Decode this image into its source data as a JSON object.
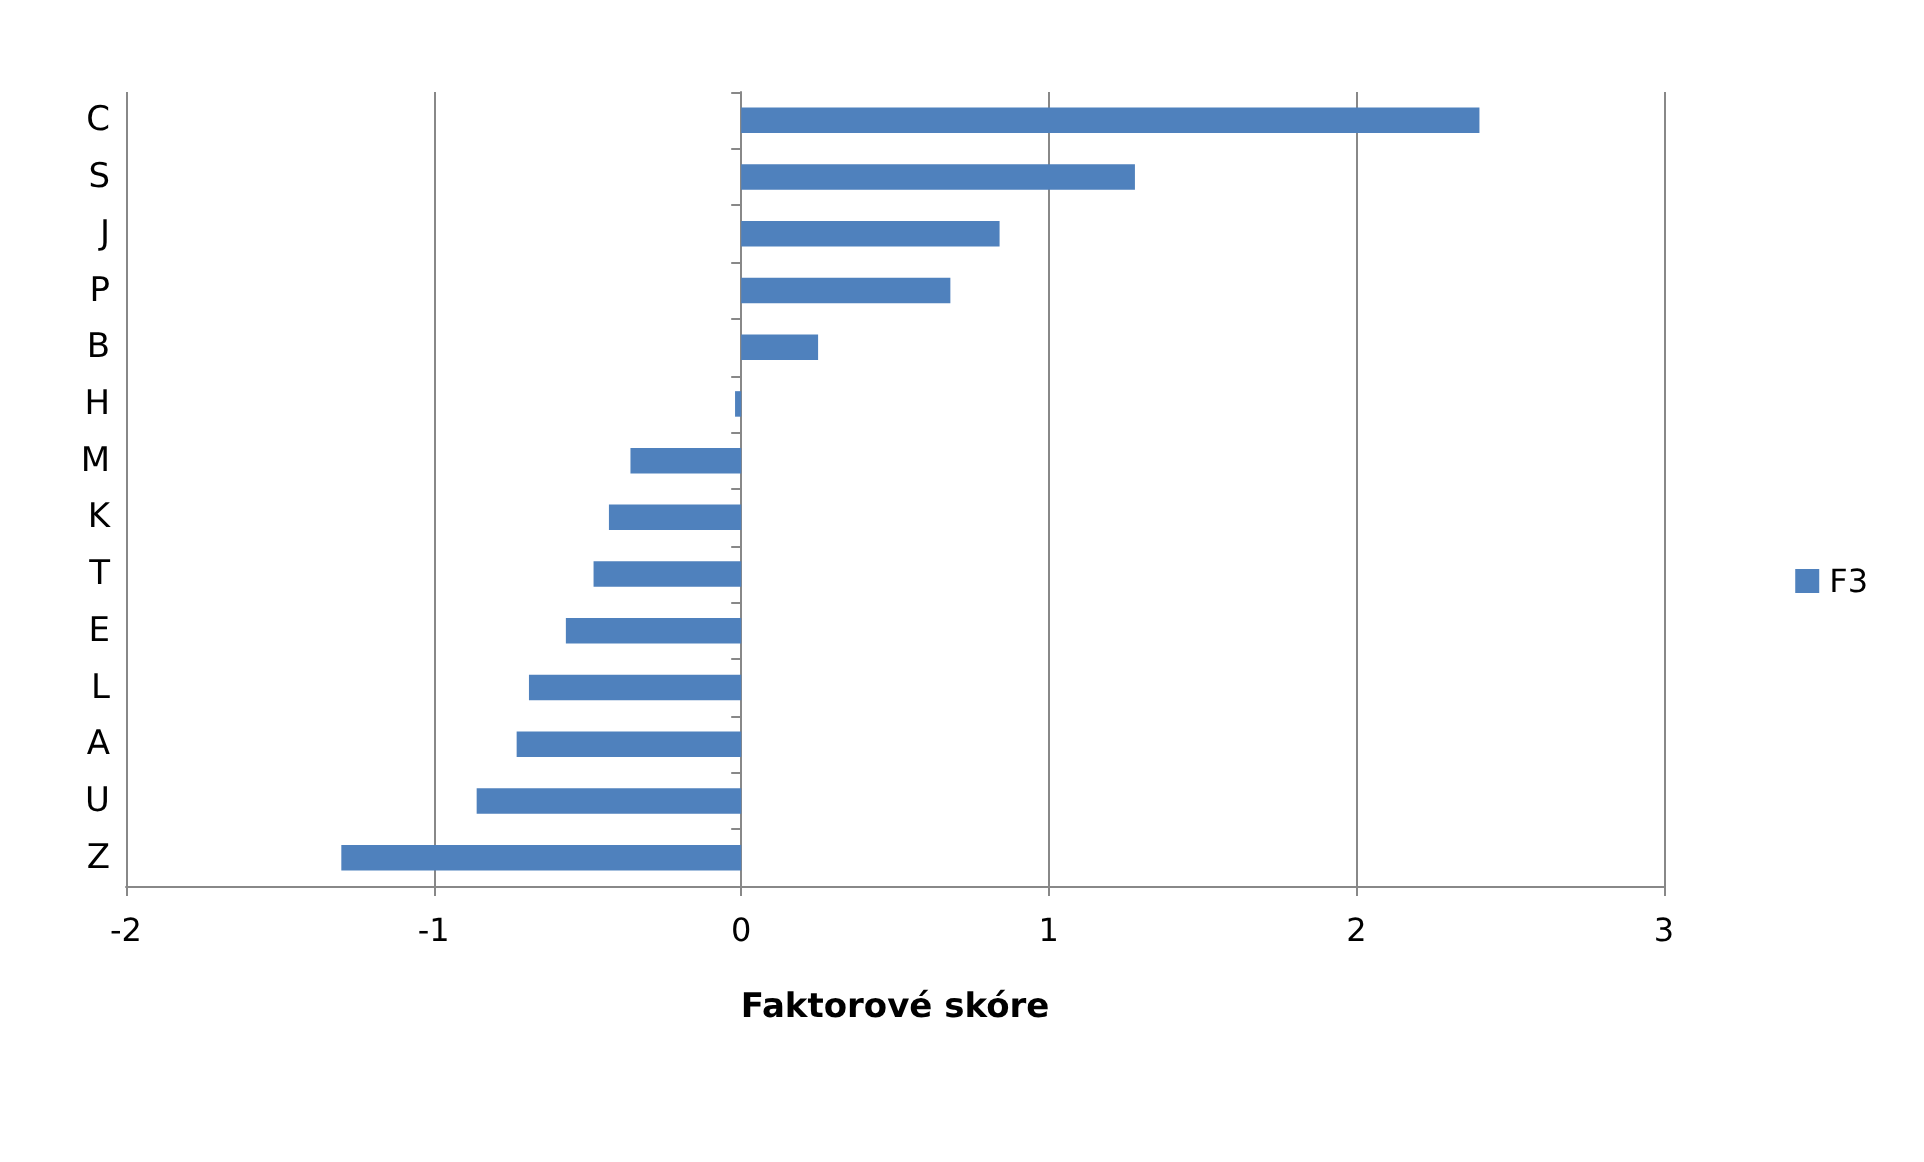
{
  "chart_data": {
    "type": "bar",
    "orientation": "horizontal",
    "xlabel": "Faktorové skóre",
    "categories": [
      "C",
      "S",
      "J",
      "P",
      "B",
      "H",
      "M",
      "K",
      "T",
      "E",
      "L",
      "A",
      "U",
      "Z"
    ],
    "series": [
      {
        "name": "F3",
        "color": "#4f81bd",
        "values": [
          2.4,
          1.28,
          0.84,
          0.68,
          0.25,
          -0.02,
          -0.36,
          -0.43,
          -0.48,
          -0.57,
          -0.69,
          -0.73,
          -0.86,
          -1.3
        ]
      }
    ],
    "xlim": [
      -2,
      3
    ],
    "xticks": [
      -2,
      -1,
      0,
      1,
      2,
      3
    ],
    "grid": "x",
    "legend": "right"
  }
}
